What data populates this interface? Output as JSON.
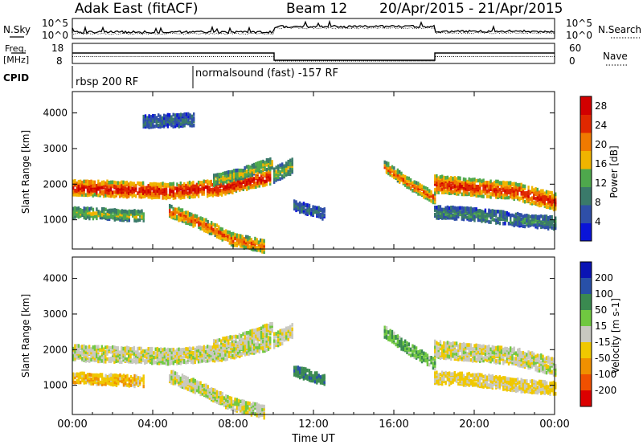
{
  "header": {
    "title": "Adak East (fitACF)",
    "beam": "Beam 12",
    "date_range": "20/Apr/2015 - 21/Apr/2015"
  },
  "noise_panel": {
    "left_label": "N.Sky",
    "right_label": "N.Search",
    "tick_top": "10^5",
    "tick_bottom": "10^0"
  },
  "freq_panel": {
    "left_label": "Freq.",
    "left_unit": "[MHz]",
    "left_ticks": [
      "18",
      "8"
    ],
    "right_label": "Nave",
    "right_ticks": [
      "60",
      "0"
    ]
  },
  "cpid_panel": {
    "label": "CPID",
    "segments": [
      {
        "name": "rbsp 200 RF",
        "start_hour": 0,
        "end_hour": 6
      },
      {
        "name": "normalsound (fast) -157 RF",
        "start_hour": 6,
        "end_hour": 24
      }
    ]
  },
  "colors": {
    "power_scale": [
      "#0a14d8",
      "#2f4fa8",
      "#3a7a6a",
      "#4ea84c",
      "#f0b400",
      "#f07a00",
      "#e02800",
      "#d20000"
    ],
    "velocity_scale": [
      "#dc0000",
      "#f05000",
      "#f09000",
      "#f0c800",
      "#c8c8c0",
      "#70c840",
      "#3a8a50",
      "#2850a8",
      "#0a14b4"
    ]
  },
  "chart_data": [
    {
      "type": "heatmap",
      "title": "",
      "ylabel": "Slant Range [km]",
      "xlabel": "",
      "x_ticks": [
        "00:00",
        "04:00",
        "08:00",
        "12:00",
        "16:00",
        "20:00",
        "00:00"
      ],
      "xlim_hours": [
        0,
        24
      ],
      "y_ticks": [
        1000,
        2000,
        3000,
        4000
      ],
      "ylim": [
        180,
        4600
      ],
      "colorbar": {
        "label": "Power [dB]",
        "ticks": [
          4,
          8,
          12,
          16,
          20,
          24,
          28
        ],
        "range": [
          0,
          30
        ]
      },
      "echo_bands": [
        {
          "start_hour": 0,
          "end_hour": 9.8,
          "center_km": [
            1900,
            1850,
            1800,
            1900,
            2200
          ],
          "width_km": 380,
          "peak_db": 27
        },
        {
          "start_hour": 7.0,
          "end_hour": 9.9,
          "center_km": [
            2100,
            2300,
            2600
          ],
          "width_km": 250,
          "peak_db": 16
        },
        {
          "start_hour": 0,
          "end_hour": 3.5,
          "center_km": [
            1200,
            1150,
            1100
          ],
          "width_km": 250,
          "peak_db": 15
        },
        {
          "start_hour": 4.8,
          "end_hour": 9.5,
          "center_km": [
            1250,
            900,
            450,
            250
          ],
          "width_km": 300,
          "peak_db": 22
        },
        {
          "start_hour": 3.5,
          "end_hour": 6.0,
          "center_km": [
            3750,
            3800
          ],
          "width_km": 300,
          "peak_db": 8
        },
        {
          "start_hour": 10.0,
          "end_hour": 10.9,
          "center_km": [
            2250,
            2500
          ],
          "width_km": 350,
          "peak_db": 14
        },
        {
          "start_hour": 11.0,
          "end_hour": 12.5,
          "center_km": [
            1400,
            1150
          ],
          "width_km": 250,
          "peak_db": 8
        },
        {
          "start_hour": 15.5,
          "end_hour": 18.0,
          "center_km": [
            2500,
            2000,
            1600
          ],
          "width_km": 260,
          "peak_db": 22
        },
        {
          "start_hour": 18.0,
          "end_hour": 24.0,
          "center_km": [
            2000,
            1900,
            1800,
            1500
          ],
          "width_km": 420,
          "peak_db": 25
        },
        {
          "start_hour": 18.0,
          "end_hour": 24.0,
          "center_km": [
            1200,
            1150,
            1000,
            900
          ],
          "width_km": 300,
          "peak_db": 10
        }
      ]
    },
    {
      "type": "heatmap",
      "title": "",
      "ylabel": "Slant Range [km]",
      "xlabel": "Time UT",
      "x_ticks": [
        "00:00",
        "04:00",
        "08:00",
        "12:00",
        "16:00",
        "20:00",
        "00:00"
      ],
      "xlim_hours": [
        0,
        24
      ],
      "y_ticks": [
        1000,
        2000,
        3000,
        4000
      ],
      "ylim": [
        180,
        4600
      ],
      "colorbar": {
        "label": "Velocity [m s-1]",
        "ticks": [
          200,
          100,
          50,
          15,
          -15,
          -50,
          -100,
          -200
        ],
        "range": [
          -250,
          250
        ]
      },
      "echo_bands": [
        {
          "start_hour": 0,
          "end_hour": 9.8,
          "center_km": [
            1900,
            1850,
            1800,
            1900,
            2200
          ],
          "width_km": 380,
          "velocity": 0
        },
        {
          "start_hour": 7.0,
          "end_hour": 9.9,
          "center_km": [
            2100,
            2300,
            2600
          ],
          "width_km": 250,
          "velocity": 0
        },
        {
          "start_hour": 0,
          "end_hour": 3.5,
          "center_km": [
            1200,
            1150,
            1100
          ],
          "width_km": 250,
          "velocity": -40
        },
        {
          "start_hour": 4.8,
          "end_hour": 9.5,
          "center_km": [
            1250,
            900,
            450,
            250
          ],
          "width_km": 300,
          "velocity": 0
        },
        {
          "start_hour": 10.0,
          "end_hour": 10.9,
          "center_km": [
            2250,
            2500
          ],
          "width_km": 350,
          "velocity": 0
        },
        {
          "start_hour": 11.0,
          "end_hour": 12.5,
          "center_km": [
            1400,
            1150
          ],
          "width_km": 250,
          "velocity": 80
        },
        {
          "start_hour": 15.5,
          "end_hour": 18.0,
          "center_km": [
            2500,
            2000,
            1600
          ],
          "width_km": 260,
          "velocity": 40
        },
        {
          "start_hour": 18.0,
          "end_hour": 24.0,
          "center_km": [
            2000,
            1900,
            1800,
            1500
          ],
          "width_km": 420,
          "velocity": 0
        },
        {
          "start_hour": 18.0,
          "end_hour": 24.0,
          "center_km": [
            1200,
            1150,
            1000,
            900
          ],
          "width_km": 300,
          "velocity": -20
        }
      ]
    }
  ]
}
